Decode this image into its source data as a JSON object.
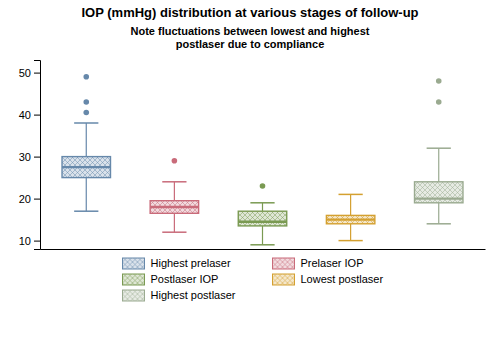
{
  "chart_data": {
    "type": "box",
    "title": "IOP (mmHg) distribution at various stages of follow-up",
    "subtitle": "Note fluctuations between lowest and highest\npostlaser due to compliance",
    "ylim": [
      8,
      53
    ],
    "yticks": [
      10,
      20,
      30,
      40,
      50
    ],
    "tick_labels": "y",
    "legend": "bottom",
    "series": [
      {
        "name": "Highest prelaser",
        "color": "#6688aa",
        "whisker_lo": 17,
        "q1": 25,
        "median": 27.5,
        "q3": 30,
        "whisker_hi": 38,
        "fliers": [
          40.5,
          43,
          49
        ]
      },
      {
        "name": "Prelaser IOP",
        "color": "#c96b7a",
        "whisker_lo": 12,
        "q1": 16.5,
        "median": 18,
        "q3": 19.5,
        "whisker_hi": 24,
        "fliers": [
          29
        ]
      },
      {
        "name": "Postlaser IOP",
        "color": "#7a9a52",
        "whisker_lo": 9,
        "q1": 13.5,
        "median": 14.5,
        "q3": 17,
        "whisker_hi": 19,
        "fliers": [
          23
        ]
      },
      {
        "name": "Lowest postlaser",
        "color": "#d4a030",
        "whisker_lo": 10,
        "q1": 14,
        "median": 15,
        "q3": 16,
        "whisker_hi": 21,
        "fliers": []
      },
      {
        "name": "Highest postlaser",
        "color": "#9aaa90",
        "whisker_lo": 14,
        "q1": 19,
        "median": 20,
        "q3": 24,
        "whisker_hi": 32,
        "fliers": [
          43,
          48
        ]
      }
    ]
  }
}
